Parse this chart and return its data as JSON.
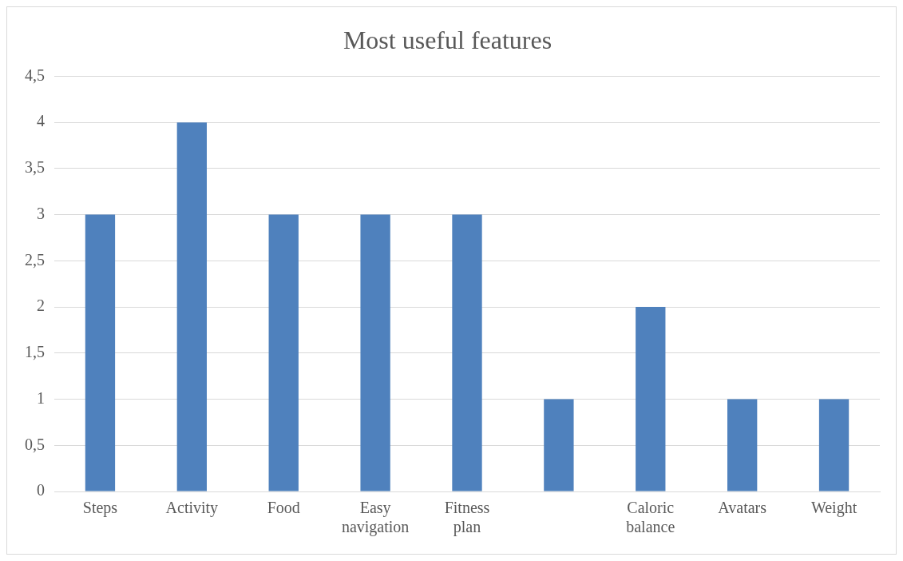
{
  "chart_data": {
    "type": "bar",
    "title": "Most useful features",
    "categories": [
      "Steps",
      "Activity",
      "Food",
      "Easy navigation",
      "Fitness plan",
      null,
      "Caloric balance",
      "Avatars",
      "Weight"
    ],
    "values": [
      3,
      4,
      3,
      3,
      3,
      1,
      2,
      1,
      1
    ],
    "color": "#4f81bd",
    "ylim": [
      0,
      4.5
    ],
    "yticks": [
      0,
      {
        "value": 0.5,
        "label": "0,5"
      },
      1,
      {
        "value": 1.5,
        "label": "1,5"
      },
      2,
      {
        "value": 2.5,
        "label": "2,5"
      },
      3,
      {
        "value": 3.5,
        "label": "3,5"
      },
      4,
      {
        "value": 4.5,
        "label": "4,5"
      }
    ],
    "grid": "y",
    "legend": false
  }
}
